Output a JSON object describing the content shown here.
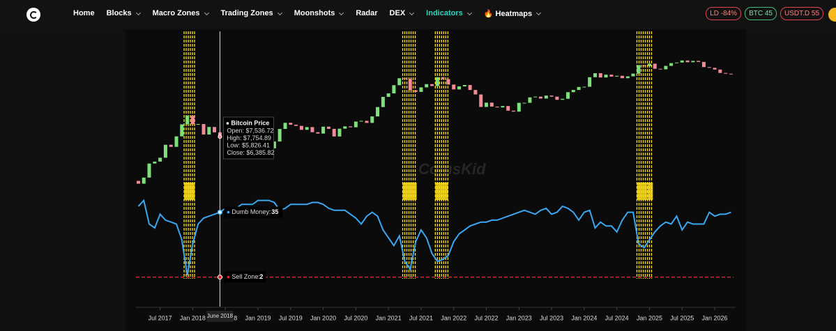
{
  "nav": {
    "items": [
      "Home",
      "Blocks",
      "Macro Zones",
      "Trading Zones",
      "Moonshots",
      "Radar",
      "DEX",
      "Indicators",
      "🔥 Heatmaps"
    ],
    "badges": [
      "LD -84%",
      "BTC 45",
      "USDT.D 55"
    ]
  },
  "chart_data": {
    "type": "candlestick",
    "watermark": "CoinsKid",
    "x": [
      2017.167,
      2017.25,
      2017.333,
      2017.417,
      2017.5,
      2017.583,
      2017.667,
      2017.75,
      2017.833,
      2017.917,
      2018,
      2018.083,
      2018.167,
      2018.25,
      2018.333,
      2018.417,
      2018.5,
      2018.583,
      2018.667,
      2018.75,
      2018.833,
      2018.917,
      2019,
      2019.083,
      2019.167,
      2019.25,
      2019.333,
      2019.417,
      2019.5,
      2019.583,
      2019.667,
      2019.75,
      2019.833,
      2019.917,
      2020,
      2020.083,
      2020.167,
      2020.25,
      2020.333,
      2020.417,
      2020.5,
      2020.583,
      2020.667,
      2020.75,
      2020.833,
      2020.917,
      2021,
      2021.083,
      2021.167,
      2021.25,
      2021.333,
      2021.417,
      2021.5,
      2021.583,
      2021.667,
      2021.75,
      2021.833,
      2021.917,
      2022,
      2022.083,
      2022.167,
      2022.25,
      2022.333,
      2022.417,
      2022.5,
      2022.583,
      2022.667,
      2022.75,
      2022.833,
      2022.917,
      2023,
      2023.083,
      2023.167,
      2023.25,
      2023.333,
      2023.417,
      2023.5,
      2023.583,
      2023.667,
      2023.75,
      2023.833,
      2023.917,
      2024,
      2024.083,
      2024.167,
      2024.25,
      2024.333,
      2024.417,
      2024.5,
      2024.583,
      2024.667,
      2024.75,
      2024.833,
      2024.917,
      2025,
      2025.083,
      2025.167,
      2025.25,
      2025.333,
      2025.417,
      2025.5,
      2025.583,
      2025.667,
      2025.75,
      2025.833,
      2025.917,
      2026,
      2026.083,
      2026.167,
      2026.25
    ],
    "xlim": [
      2017.13,
      2026.32
    ],
    "xticks": [
      {
        "value": 2017.5,
        "label": "Jul 2017"
      },
      {
        "value": 2018,
        "label": "Jan 2018"
      },
      {
        "value": 2018.5,
        "label": "Jul 2018"
      },
      {
        "value": 2019,
        "label": "Jan 2019"
      },
      {
        "value": 2019.5,
        "label": "Jul 2019"
      },
      {
        "value": 2020,
        "label": "Jan 2020"
      },
      {
        "value": 2020.5,
        "label": "Jul 2020"
      },
      {
        "value": 2021,
        "label": "Jan 2021"
      },
      {
        "value": 2021.5,
        "label": "Jul 2021"
      },
      {
        "value": 2022,
        "label": "Jan 2022"
      },
      {
        "value": 2022.5,
        "label": "Jul 2022"
      },
      {
        "value": 2023,
        "label": "Jan 2023"
      },
      {
        "value": 2023.5,
        "label": "Jul 2023"
      },
      {
        "value": 2024,
        "label": "Jan 2024"
      },
      {
        "value": 2024.5,
        "label": "Jul 2024"
      },
      {
        "value": 2025,
        "label": "Jan 2025"
      },
      {
        "value": 2025.5,
        "label": "Jul 2025"
      },
      {
        "value": 2026,
        "label": "Jan 2026"
      }
    ],
    "price": {
      "name": "Bitcoin Price",
      "up_color": "#7ee07a",
      "down_color": "#f28b96",
      "log": true,
      "ylim": [
        10,
        350000
      ],
      "open": [
        1190,
        1070,
        1350,
        2300,
        2480,
        2870,
        4700,
        4340,
        6470,
        10200,
        14150,
        10220,
        10330,
        6930,
        9240,
        7536.72,
        6385.82,
        7730,
        7030,
        6630,
        6320,
        4020,
        3740,
        3460,
        3850,
        4100,
        5320,
        8570,
        10820,
        10080,
        9630,
        8290,
        9200,
        7570,
        7190,
        9350,
        8600,
        6440,
        8660,
        9460,
        9140,
        11350,
        11680,
        10780,
        13800,
        19700,
        28990,
        33110,
        45240,
        58920,
        57750,
        37330,
        35040,
        41630,
        47100,
        43790,
        61320,
        57000,
        46310,
        38480,
        43190,
        45540,
        37710,
        31790,
        19780,
        23300,
        20050,
        19430,
        20500,
        17170,
        16550,
        23140,
        23150,
        28480,
        29270,
        27220,
        30480,
        29230,
        25940,
        26970,
        34670,
        37720,
        42270,
        42580,
        61200,
        71330,
        60640,
        67490,
        62680,
        64620,
        58970,
        63330,
        70220,
        96450,
        93430,
        102400,
        84370,
        82550,
        94200,
        104600,
        107100,
        115700,
        108200,
        114000,
        109500,
        90000,
        87500,
        82000,
        72000,
        70000
      ],
      "close": [
        1070,
        1350,
        2300,
        2480,
        2870,
        4700,
        4340,
        6470,
        10200,
        14150,
        10220,
        10330,
        6930,
        9240,
        7536.72,
        6385.82,
        7730,
        7030,
        6630,
        6320,
        4020,
        3740,
        3460,
        3850,
        4100,
        5320,
        8570,
        10820,
        10080,
        9630,
        8290,
        9200,
        7570,
        7190,
        9350,
        8600,
        6440,
        8660,
        9460,
        9140,
        11350,
        11680,
        10780,
        13800,
        19700,
        28990,
        33110,
        45240,
        58920,
        57750,
        37330,
        35040,
        41630,
        47100,
        43790,
        61320,
        57000,
        46310,
        38480,
        43190,
        45540,
        37710,
        31790,
        19780,
        23300,
        20050,
        19430,
        20500,
        17170,
        16550,
        23140,
        23150,
        28480,
        29270,
        27220,
        30480,
        29230,
        25940,
        26970,
        34670,
        37720,
        42270,
        42580,
        61200,
        71330,
        60640,
        67490,
        62680,
        64620,
        58970,
        63330,
        70220,
        96450,
        93430,
        102400,
        84370,
        82550,
        94200,
        104600,
        107100,
        115700,
        108200,
        114000,
        109500,
        90000,
        87500,
        82000,
        72000,
        70000,
        69000
      ]
    },
    "dumb": {
      "name": "Dumb Money:",
      "color": "#3ba7f0",
      "axis": "y2",
      "values": [
        38,
        41,
        29,
        27,
        34,
        31,
        30,
        29,
        21,
        3,
        19,
        29,
        32,
        33,
        34,
        35,
        37,
        37,
        37,
        39,
        39,
        39,
        41,
        41,
        41,
        40,
        36,
        37,
        39,
        39,
        39,
        39,
        40,
        40,
        39,
        37,
        36,
        36,
        36,
        34,
        32,
        29,
        33,
        35,
        33,
        26,
        22,
        18,
        23,
        10,
        6,
        20,
        26,
        22,
        14,
        10,
        11,
        13,
        20,
        24,
        26,
        28,
        29,
        30,
        30,
        31,
        31,
        32,
        33,
        34,
        35,
        36,
        35,
        34,
        36,
        37,
        34,
        35,
        38,
        37,
        35,
        31,
        35,
        36,
        27,
        30,
        28,
        28,
        25,
        31,
        35,
        35,
        19,
        17,
        21,
        25,
        28,
        30,
        29,
        33,
        26,
        30,
        29,
        29,
        29,
        35,
        33,
        34,
        34,
        35
      ]
    },
    "y2lim": [
      -13,
      127
    ],
    "sell_zone": {
      "name": "Sell Zone:",
      "value": 2,
      "color": "#e0262b"
    },
    "sell_signals": [
      [
        2017.9,
        2018.0
      ],
      [
        2021.25,
        2021.4
      ],
      [
        2021.75,
        2021.88
      ],
      [
        2024.84,
        2024.93
      ],
      [
        2025.0,
        2025.02
      ]
    ],
    "signal_color": "#ffe11a",
    "tooltip": {
      "title": "Bitcoin Price",
      "rows": [
        "Open: $7,536.72",
        "High: $7,754.89",
        "Low: $5,826.41",
        "Close: $6,385.82"
      ],
      "index": 15,
      "date": "June 2018"
    }
  }
}
